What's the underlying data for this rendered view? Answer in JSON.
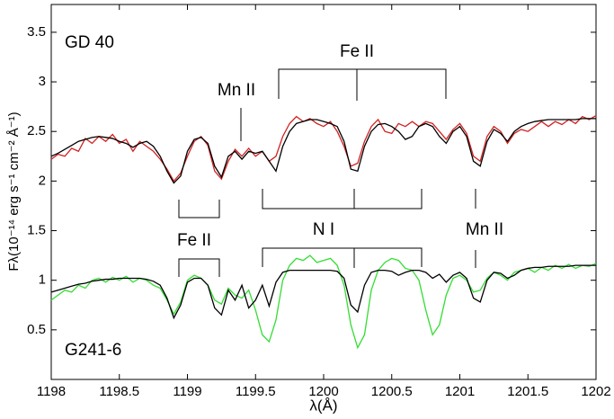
{
  "chart_data": {
    "type": "line",
    "xlabel": "λ(Å)",
    "ylabel": "Fλ(10⁻¹⁴ erg s⁻¹ cm⁻² Å⁻¹)",
    "annotations": [
      "GD 40",
      "Fe II",
      "Mn II",
      "N I",
      "Mn II",
      "Fe II",
      "G241-6"
    ],
    "xlim": [
      1198,
      1202
    ],
    "ylim": [
      0,
      3.78
    ],
    "xticks": [
      1198,
      1198.5,
      1199,
      1199.5,
      1200,
      1200.5,
      1201,
      1201.5,
      1202
    ],
    "yticks": [
      0.5,
      1,
      1.5,
      2,
      2.5,
      3,
      3.5
    ],
    "x": [
      1198,
      1198.05,
      1198.1,
      1198.15,
      1198.2,
      1198.25,
      1198.3,
      1198.35,
      1198.4,
      1198.45,
      1198.5,
      1198.55,
      1198.6,
      1198.65,
      1198.7,
      1198.75,
      1198.8,
      1198.85,
      1198.9,
      1198.95,
      1199,
      1199.05,
      1199.1,
      1199.15,
      1199.2,
      1199.25,
      1199.3,
      1199.35,
      1199.4,
      1199.45,
      1199.5,
      1199.55,
      1199.6,
      1199.65,
      1199.7,
      1199.75,
      1199.8,
      1199.85,
      1199.9,
      1199.95,
      1200,
      1200.05,
      1200.1,
      1200.15,
      1200.2,
      1200.25,
      1200.3,
      1200.35,
      1200.4,
      1200.45,
      1200.5,
      1200.55,
      1200.6,
      1200.65,
      1200.7,
      1200.75,
      1200.8,
      1200.85,
      1200.9,
      1200.95,
      1201,
      1201.05,
      1201.1,
      1201.15,
      1201.2,
      1201.25,
      1201.3,
      1201.35,
      1201.4,
      1201.45,
      1201.5,
      1201.55,
      1201.6,
      1201.65,
      1201.7,
      1201.75,
      1201.8,
      1201.85,
      1201.9,
      1201.95,
      1202
    ],
    "series": [
      {
        "color": "#d42020",
        "values": [
          2.22,
          2.27,
          2.25,
          2.33,
          2.3,
          2.43,
          2.38,
          2.45,
          2.4,
          2.47,
          2.38,
          2.42,
          2.3,
          2.4,
          2.35,
          2.3,
          2.22,
          2.12,
          2.0,
          2.08,
          2.25,
          2.4,
          2.45,
          2.36,
          2.1,
          2.02,
          2.2,
          2.32,
          2.25,
          2.33,
          2.25,
          2.3,
          2.2,
          2.25,
          2.45,
          2.58,
          2.65,
          2.6,
          2.63,
          2.58,
          2.55,
          2.6,
          2.5,
          2.35,
          2.15,
          2.18,
          2.4,
          2.55,
          2.62,
          2.5,
          2.48,
          2.58,
          2.55,
          2.6,
          2.55,
          2.6,
          2.58,
          2.5,
          2.42,
          2.52,
          2.58,
          2.48,
          2.25,
          2.2,
          2.45,
          2.55,
          2.5,
          2.38,
          2.48,
          2.52,
          2.5,
          2.55,
          2.6,
          2.55,
          2.6,
          2.57,
          2.62,
          2.58,
          2.65,
          2.62,
          2.66
        ]
      },
      {
        "color": "#000000",
        "values": [
          2.25,
          2.28,
          2.32,
          2.36,
          2.4,
          2.42,
          2.44,
          2.45,
          2.44,
          2.43,
          2.4,
          2.38,
          2.34,
          2.38,
          2.4,
          2.35,
          2.25,
          2.1,
          1.98,
          2.05,
          2.3,
          2.42,
          2.44,
          2.38,
          2.15,
          2.04,
          2.25,
          2.3,
          2.22,
          2.3,
          2.28,
          2.3,
          2.2,
          2.1,
          2.35,
          2.5,
          2.58,
          2.6,
          2.62,
          2.62,
          2.6,
          2.58,
          2.55,
          2.4,
          2.12,
          2.1,
          2.35,
          2.5,
          2.57,
          2.58,
          2.55,
          2.5,
          2.42,
          2.45,
          2.55,
          2.58,
          2.55,
          2.45,
          2.38,
          2.5,
          2.55,
          2.45,
          2.2,
          2.15,
          2.4,
          2.52,
          2.48,
          2.4,
          2.5,
          2.55,
          2.58,
          2.6,
          2.61,
          2.62,
          2.62,
          2.62,
          2.62,
          2.62,
          2.63,
          2.63,
          2.63
        ]
      },
      {
        "color": "#33dd33",
        "values": [
          0.8,
          0.85,
          0.9,
          0.88,
          0.95,
          0.92,
          1.0,
          1.02,
          0.98,
          1.03,
          1.0,
          1.04,
          0.98,
          1.02,
          1.0,
          0.95,
          0.92,
          0.8,
          0.66,
          0.78,
          1.0,
          1.05,
          1.02,
          0.95,
          0.8,
          0.76,
          0.92,
          0.85,
          0.82,
          0.9,
          0.7,
          0.45,
          0.38,
          0.6,
          1.0,
          1.15,
          1.22,
          1.2,
          1.25,
          1.18,
          1.2,
          1.22,
          1.15,
          0.95,
          0.55,
          0.32,
          0.45,
          0.9,
          1.1,
          1.18,
          1.22,
          1.2,
          1.12,
          1.1,
          1.0,
          0.7,
          0.45,
          0.55,
          0.85,
          1.02,
          1.05,
          1.0,
          0.88,
          0.9,
          1.02,
          1.08,
          1.05,
          1.0,
          1.08,
          1.1,
          1.12,
          1.08,
          1.13,
          1.1,
          1.15,
          1.12,
          1.16,
          1.12,
          1.15,
          1.14,
          1.17
        ]
      },
      {
        "color": "#000000",
        "values": [
          0.88,
          0.9,
          0.92,
          0.94,
          0.96,
          0.97,
          0.99,
          1.0,
          1.01,
          1.01,
          1.02,
          1.02,
          1.02,
          1.02,
          1.01,
          0.99,
          0.95,
          0.82,
          0.62,
          0.75,
          0.98,
          1.02,
          1.02,
          0.95,
          0.72,
          0.65,
          0.9,
          0.8,
          0.95,
          0.72,
          0.8,
          0.95,
          0.74,
          0.98,
          1.08,
          1.1,
          1.1,
          1.1,
          1.1,
          1.1,
          1.1,
          1.1,
          1.09,
          1.02,
          0.75,
          0.68,
          0.95,
          1.08,
          1.1,
          1.1,
          1.09,
          1.05,
          1.08,
          1.1,
          1.1,
          1.08,
          1.02,
          1.06,
          0.98,
          1.05,
          1.08,
          1.02,
          0.82,
          0.78,
          1.0,
          1.08,
          1.07,
          1.02,
          1.05,
          1.1,
          1.12,
          1.13,
          1.13,
          1.14,
          1.14,
          1.14,
          1.14,
          1.15,
          1.15,
          1.15,
          1.15
        ]
      }
    ]
  }
}
